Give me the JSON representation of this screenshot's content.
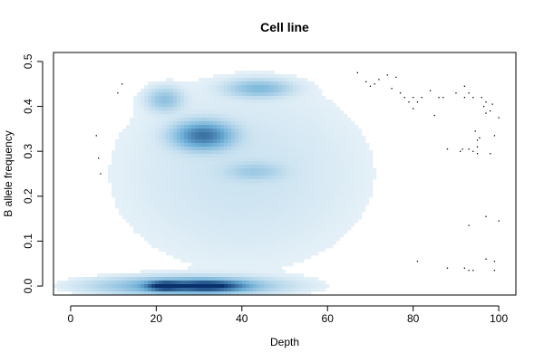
{
  "chart_data": {
    "type": "heatmap",
    "title": "Cell line",
    "xlabel": "Depth",
    "ylabel": "B allele frequency",
    "xlim": [
      -4,
      104
    ],
    "ylim": [
      -0.02,
      0.52
    ],
    "xticks": [
      0,
      20,
      40,
      60,
      80,
      100
    ],
    "yticks": [
      0.0,
      0.1,
      0.2,
      0.3,
      0.4,
      0.5
    ],
    "xtick_labels": [
      "0",
      "20",
      "40",
      "60",
      "80",
      "100"
    ],
    "ytick_labels": [
      "0.0",
      "0.1",
      "0.2",
      "0.3",
      "0.4",
      "0.5"
    ],
    "grid": false,
    "legend": "none",
    "colormap": [
      "#ffffff",
      "#6baed6",
      "#08306b"
    ],
    "density_clusters": [
      {
        "x": 22,
        "y": 0.0,
        "sx": 2.5,
        "sy": 0.006,
        "weight": 1.0
      },
      {
        "x": 32,
        "y": 0.0,
        "sx": 5.0,
        "sy": 0.007,
        "weight": 0.9
      },
      {
        "x": 27,
        "y": 0.0,
        "sx": 12.0,
        "sy": 0.012,
        "weight": 0.35
      },
      {
        "x": 31,
        "y": 0.335,
        "sx": 4.0,
        "sy": 0.018,
        "weight": 0.55
      },
      {
        "x": 44,
        "y": 0.44,
        "sx": 4.5,
        "sy": 0.012,
        "weight": 0.2
      },
      {
        "x": 22,
        "y": 0.415,
        "sx": 2.5,
        "sy": 0.016,
        "weight": 0.16
      },
      {
        "x": 43,
        "y": 0.255,
        "sx": 4.0,
        "sy": 0.012,
        "weight": 0.1
      },
      {
        "x": 40,
        "y": 0.25,
        "sx": 20.0,
        "sy": 0.14,
        "weight": 0.04
      }
    ],
    "outliers": [
      [
        6,
        0.335
      ],
      [
        6.5,
        0.285
      ],
      [
        7,
        0.25
      ],
      [
        11,
        0.43
      ],
      [
        12,
        0.45
      ],
      [
        67,
        0.475
      ],
      [
        69,
        0.455
      ],
      [
        70,
        0.445
      ],
      [
        71,
        0.45
      ],
      [
        72,
        0.46
      ],
      [
        74,
        0.47
      ],
      [
        75,
        0.44
      ],
      [
        76,
        0.465
      ],
      [
        77,
        0.43
      ],
      [
        78,
        0.42
      ],
      [
        79,
        0.41
      ],
      [
        80,
        0.42
      ],
      [
        80,
        0.395
      ],
      [
        81,
        0.41
      ],
      [
        82,
        0.42
      ],
      [
        84,
        0.435
      ],
      [
        85,
        0.38
      ],
      [
        86,
        0.42
      ],
      [
        87,
        0.42
      ],
      [
        88,
        0.305
      ],
      [
        90,
        0.43
      ],
      [
        91,
        0.3
      ],
      [
        91.5,
        0.305
      ],
      [
        92,
        0.42
      ],
      [
        92,
        0.445
      ],
      [
        93,
        0.43
      ],
      [
        93,
        0.305
      ],
      [
        94,
        0.42
      ],
      [
        94,
        0.3
      ],
      [
        94.5,
        0.345
      ],
      [
        95,
        0.325
      ],
      [
        95,
        0.31
      ],
      [
        95,
        0.295
      ],
      [
        95.5,
        0.33
      ],
      [
        96,
        0.42
      ],
      [
        96.5,
        0.4
      ],
      [
        97,
        0.385
      ],
      [
        97,
        0.41
      ],
      [
        98,
        0.39
      ],
      [
        98,
        0.295
      ],
      [
        98.5,
        0.405
      ],
      [
        99,
        0.335
      ],
      [
        100,
        0.375
      ],
      [
        97,
        0.155
      ],
      [
        100,
        0.145
      ],
      [
        93,
        0.135
      ],
      [
        81,
        0.055
      ],
      [
        88,
        0.04
      ],
      [
        92,
        0.04
      ],
      [
        93,
        0.035
      ],
      [
        94,
        0.035
      ],
      [
        97,
        0.06
      ],
      [
        99,
        0.055
      ],
      [
        99,
        0.035
      ]
    ]
  }
}
